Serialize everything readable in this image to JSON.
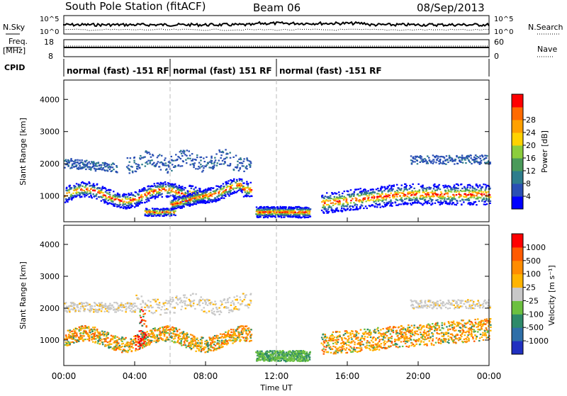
{
  "header": {
    "station": "South Pole Station (fitACF)",
    "beam": "Beam 06",
    "date": "08/Sep/2013"
  },
  "status_panel": {
    "nsky_label": "N.Sky",
    "nsky_ticks": [
      "10^5",
      "10^0"
    ],
    "nsearch_label": "N.Search",
    "nsearch_ticks": [
      "10^5",
      "10^0"
    ],
    "freq_label_1": "Freq.",
    "freq_label_2": "[MHz]",
    "freq_ticks": [
      "18",
      "8"
    ],
    "nave_label": "Nave",
    "nave_ticks": [
      "60",
      "0"
    ],
    "cpid_label": "CPID"
  },
  "cpid_segments": [
    {
      "start": 0,
      "end": 6,
      "label": "normal (fast) -151 RF"
    },
    {
      "start": 6,
      "end": 12,
      "label": "normal (fast) 151 RF"
    },
    {
      "start": 12,
      "end": 24,
      "label": "normal (fast) -151 RF"
    }
  ],
  "chart_data": [
    {
      "type": "heatmap",
      "name": "power",
      "ylabel": "Slant Range [km]",
      "ylim": [
        200,
        4600
      ],
      "yticks": [
        "1000",
        "2000",
        "3000",
        "4000"
      ],
      "xlim": [
        0,
        24
      ],
      "colorbar": {
        "label": "Power [dB]",
        "ticks": [
          "4",
          "8",
          "12",
          "16",
          "20",
          "24",
          "28"
        ],
        "colors": [
          "#0000ff",
          "#2a4fb4",
          "#2e7d8c",
          "#4a9a5a",
          "#8ccd3c",
          "#ffd200",
          "#ffa000",
          "#ff6a00",
          "#ff0000"
        ]
      }
    },
    {
      "type": "heatmap",
      "name": "velocity",
      "ylabel": "Slant Range [km]",
      "ylim": [
        200,
        4600
      ],
      "yticks": [
        "1000",
        "2000",
        "3000",
        "4000"
      ],
      "xlim": [
        0,
        24
      ],
      "xlabel": "Time UT",
      "xticks": [
        "00:00",
        "04:00",
        "08:00",
        "12:00",
        "16:00",
        "20:00",
        "00:00"
      ],
      "colorbar": {
        "label": "Velocity [m s⁻¹]",
        "ticks": [
          "1000",
          "500",
          "100",
          "25",
          "-25",
          "-100",
          "-500",
          "-1000"
        ],
        "colors": [
          "#2030c0",
          "#2f6fa8",
          "#2e8a6a",
          "#6cc040",
          "#c8c8c8",
          "#ffb400",
          "#ff8c00",
          "#ff5a00",
          "#ff0000"
        ]
      }
    }
  ],
  "palette": {
    "power_low": "#0000ff",
    "power_high": "#ff0000",
    "vel_pos": "#2030c0",
    "vel_neg": "#ff0000",
    "ground_scatter": "#c8c8c8"
  }
}
